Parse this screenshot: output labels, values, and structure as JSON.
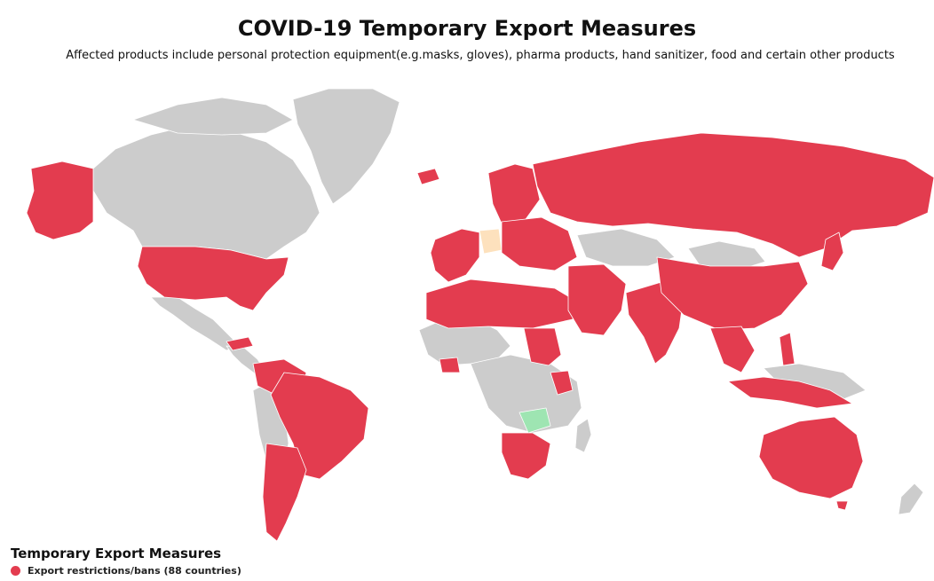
{
  "title": "COVID-19 Temporary Export Measures",
  "subtitle": "Affected products include personal protection equipment(e.g.masks, gloves), pharma products, hand sanitizer, food and certain other products",
  "colors": {
    "restricted": "#e33c4f",
    "none": "#cccccc",
    "partial": "#fde1bd",
    "other": "#9ee5b2",
    "border": "#ffffff"
  },
  "legend": {
    "title": "Temporary Export Measures",
    "items": [
      {
        "label": "Export restrictions/bans (88 countries)",
        "color": "#e33c4f"
      }
    ]
  }
}
